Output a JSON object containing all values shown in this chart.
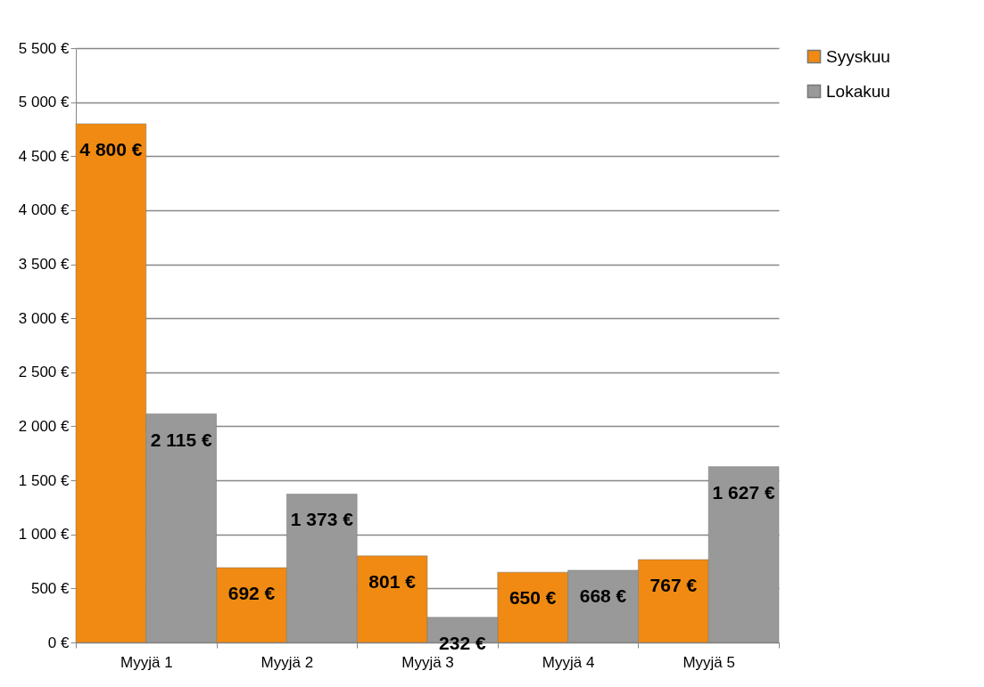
{
  "chart_data": {
    "type": "bar",
    "categories": [
      "Myyjä 1",
      "Myyjä 2",
      "Myyjä 3",
      "Myyjä 4",
      "Myyjä 5"
    ],
    "series": [
      {
        "name": "Syyskuu",
        "color": "#f08a12",
        "values": [
          4800,
          692,
          801,
          650,
          767
        ],
        "value_labels": [
          "4 800 €",
          "692 €",
          "801 €",
          "650 €",
          "767 €"
        ]
      },
      {
        "name": "Lokakuu",
        "color": "#999999",
        "values": [
          2115,
          1373,
          232,
          668,
          1627
        ],
        "value_labels": [
          "2 115 €",
          "1 373 €",
          "232 €",
          "668 €",
          "1 627 €"
        ]
      }
    ],
    "ylim": [
      0,
      5500
    ],
    "yticks": [
      {
        "value": 0,
        "label": "0 €"
      },
      {
        "value": 500,
        "label": "500 €"
      },
      {
        "value": 1000,
        "label": "1 000 €"
      },
      {
        "value": 1500,
        "label": "1 500 €"
      },
      {
        "value": 2000,
        "label": "2 000 €"
      },
      {
        "value": 2500,
        "label": "2 500 €"
      },
      {
        "value": 3000,
        "label": "3 000 €"
      },
      {
        "value": 3500,
        "label": "3 500 €"
      },
      {
        "value": 4000,
        "label": "4 000 €"
      },
      {
        "value": 4500,
        "label": "4 500 €"
      },
      {
        "value": 5000,
        "label": "5 000 €"
      },
      {
        "value": 5500,
        "label": "5 500 €"
      }
    ],
    "grid": "y",
    "legend": "right"
  }
}
